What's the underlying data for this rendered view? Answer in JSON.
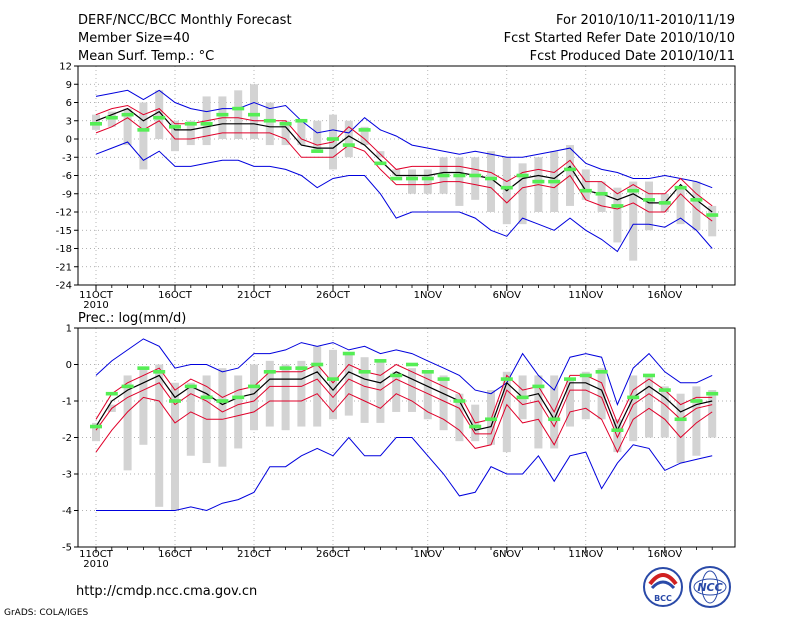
{
  "header": {
    "title": "DERF/NCC/BCC Monthly Forecast",
    "member_size": "Member Size=40",
    "variable": "Mean Surf. Temp.: °C",
    "for_range": "For 2010/10/11-2010/11/19",
    "started": "Fcst Started Refer Date 2010/10/10",
    "produced": "Fcst Produced Date 2010/10/11"
  },
  "footer": {
    "url": "http://cmdp.ncc.cma.gov.cn",
    "grads": "GrADS: COLA/IGES",
    "logo_bcc": "BCC",
    "logo_ncc": "NCC"
  },
  "colors": {
    "envelope": "#0000dd",
    "percentile": "#e0002a",
    "mean": "#000000",
    "box": "#d3d3d3",
    "marker": "#55ee55",
    "grid": "#999999"
  },
  "x_axis": {
    "day_count": 40,
    "ticks": [
      {
        "day": 0,
        "label": "11OCT"
      },
      {
        "day": 5,
        "label": "16OCT"
      },
      {
        "day": 10,
        "label": "21OCT"
      },
      {
        "day": 15,
        "label": "26OCT"
      },
      {
        "day": 21,
        "label": "1NOV"
      },
      {
        "day": 26,
        "label": "6NOV"
      },
      {
        "day": 31,
        "label": "11NOV"
      },
      {
        "day": 36,
        "label": "16NOV"
      }
    ],
    "year_label": "2010"
  },
  "chart_data": [
    {
      "type": "line",
      "id": "temp",
      "title": "Mean Surf. Temp.: °C",
      "xlabel": "",
      "ylabel": "°C",
      "ylim": [
        -24,
        12
      ],
      "yticks": [
        12,
        9,
        6,
        3,
        0,
        -3,
        -6,
        -9,
        -12,
        -15,
        -18,
        -21,
        -24
      ],
      "grid": true,
      "series": [
        {
          "name": "max",
          "values": [
            7,
            7.5,
            8,
            6.5,
            8,
            6,
            5,
            4.5,
            5,
            5,
            6,
            5,
            5.5,
            3,
            1,
            1.5,
            1,
            3.5,
            1.5,
            0.5,
            -1,
            -1.5,
            -2,
            -2.5,
            -2,
            -2.5,
            -3,
            -3,
            -2.5,
            -2,
            -1.5,
            -4,
            -5,
            -5.5,
            -6.5,
            -6.5,
            -6,
            -6.5,
            -7,
            -8
          ]
        },
        {
          "name": "p75",
          "values": [
            4,
            5,
            5.5,
            4,
            5,
            2.5,
            2.5,
            3,
            3.5,
            3.5,
            3,
            3,
            3,
            0,
            -1,
            -0.5,
            2,
            0,
            -2.5,
            -5,
            -4.5,
            -4.5,
            -4.5,
            -4.5,
            -5,
            -5.5,
            -7,
            -5.5,
            -5,
            -5.5,
            -3.5,
            -7,
            -7,
            -9,
            -7.5,
            -9,
            -9,
            -6.5,
            -9,
            -11
          ]
        },
        {
          "name": "mean",
          "values": [
            3,
            4,
            5,
            3,
            4.5,
            1.5,
            1.5,
            2,
            2.5,
            2.5,
            2.5,
            2,
            2,
            -1,
            -1.5,
            -1.5,
            0.5,
            -1,
            -3.5,
            -6,
            -6,
            -6,
            -5.5,
            -5.5,
            -6,
            -6.5,
            -8.5,
            -6.5,
            -6,
            -6.5,
            -4.5,
            -8.5,
            -9,
            -10,
            -9,
            -10.5,
            -10.5,
            -7.5,
            -10,
            -12
          ]
        },
        {
          "name": "p25",
          "values": [
            1,
            2,
            3.5,
            1.5,
            3,
            0,
            0,
            0.5,
            1,
            1,
            1,
            1,
            0,
            -3,
            -3,
            -3,
            -1,
            -2,
            -5,
            -7.5,
            -7.5,
            -7.5,
            -7,
            -7,
            -7.5,
            -8,
            -10.5,
            -8,
            -7.5,
            -8,
            -6,
            -10,
            -11,
            -11.5,
            -10.5,
            -12,
            -12,
            -9,
            -11.5,
            -13.5
          ]
        },
        {
          "name": "min",
          "values": [
            -2.5,
            -1.5,
            -0.5,
            -3.5,
            -2,
            -4.5,
            -4.5,
            -4,
            -3.5,
            -3.5,
            -4.5,
            -4.5,
            -5,
            -6,
            -8,
            -6.5,
            -6,
            -6,
            -9,
            -13,
            -12,
            -12,
            -12,
            -12,
            -13,
            -15,
            -16,
            -13,
            -14,
            -15,
            -13,
            -15,
            -16.5,
            -18.5,
            -14,
            -14,
            -14.5,
            -13,
            -15,
            -18
          ]
        }
      ],
      "boxes_low": [
        1.5,
        2,
        -1,
        -5,
        0,
        -2,
        -1,
        -1,
        0,
        0,
        0,
        -1,
        -1,
        -1,
        -2,
        -5,
        -3,
        -1,
        -3,
        -6,
        -9,
        -9,
        -9,
        -11,
        -10,
        -12,
        -14,
        -14,
        -12,
        -12,
        -11,
        -10,
        -12,
        -17,
        -20,
        -15,
        -12,
        -14,
        -15,
        -16
      ],
      "boxes_high": [
        4,
        4.5,
        5,
        6,
        8,
        3,
        3,
        7,
        7,
        8,
        9,
        6,
        3,
        3,
        3,
        4,
        3,
        2,
        -2,
        -5,
        -5,
        -5,
        -3,
        -3,
        -3,
        -2,
        -3,
        -4,
        -3,
        -2,
        -1,
        -5,
        -7,
        -8,
        -7,
        -7,
        -9,
        -8,
        -7,
        -11
      ],
      "markers": [
        2.5,
        3.5,
        4,
        1.5,
        3.5,
        2,
        2.5,
        2.5,
        4,
        5,
        4,
        3,
        2.5,
        3,
        -2,
        0,
        -1,
        1.5,
        -4,
        -6.5,
        -6.5,
        -6.5,
        -6,
        -6,
        -6,
        -6.5,
        -8,
        -6,
        -7,
        -7,
        -5,
        -8.5,
        -9,
        -11,
        -8.5,
        -10,
        -10.5,
        -8,
        -10,
        -12.5
      ]
    },
    {
      "type": "line",
      "id": "prec",
      "title": "Prec.: log(mm/d)",
      "xlabel": "",
      "ylabel": "log(mm/d)",
      "ylim": [
        -5,
        1
      ],
      "yticks": [
        1,
        0,
        -1,
        -2,
        -3,
        -4,
        -5
      ],
      "grid": true,
      "series": [
        {
          "name": "max",
          "values": [
            -0.3,
            0.1,
            0.4,
            0.7,
            0.5,
            -0.1,
            0,
            0,
            -0.2,
            -0.1,
            0.3,
            0.3,
            0.4,
            0.6,
            0.5,
            0.6,
            0.4,
            0.5,
            0.3,
            0.4,
            0.3,
            0.1,
            -0.1,
            -0.3,
            -0.7,
            -0.8,
            -0.5,
            0.3,
            -0.3,
            -0.7,
            0.2,
            0.3,
            0.2,
            -1.1,
            -0.1,
            0.3,
            -0.2,
            -0.5,
            -0.5,
            -0.3
          ]
        },
        {
          "name": "p75",
          "values": [
            -1.5,
            -0.8,
            -0.5,
            -0.3,
            -0.1,
            -0.7,
            -0.4,
            -0.6,
            -0.9,
            -0.7,
            -0.6,
            -0.2,
            -0.2,
            -0.2,
            0,
            -0.5,
            0,
            -0.2,
            -0.3,
            0,
            -0.2,
            -0.4,
            -0.6,
            -0.8,
            -1.6,
            -1.5,
            -0.3,
            -0.7,
            -0.6,
            -1.3,
            -0.3,
            -0.3,
            -0.5,
            -1.6,
            -0.7,
            -0.4,
            -0.7,
            -1.1,
            -0.9,
            -0.9
          ]
        },
        {
          "name": "mean",
          "values": [
            -1.7,
            -1.0,
            -0.7,
            -0.5,
            -0.3,
            -0.9,
            -0.6,
            -0.8,
            -1.1,
            -0.9,
            -0.8,
            -0.4,
            -0.4,
            -0.4,
            -0.2,
            -0.7,
            -0.2,
            -0.4,
            -0.5,
            -0.2,
            -0.4,
            -0.6,
            -0.8,
            -1.0,
            -1.8,
            -1.7,
            -0.5,
            -0.9,
            -0.8,
            -1.5,
            -0.5,
            -0.5,
            -0.7,
            -1.8,
            -0.9,
            -0.6,
            -0.9,
            -1.3,
            -1.1,
            -1.0
          ]
        },
        {
          "name": "p25",
          "values": [
            -1.8,
            -1.2,
            -0.9,
            -0.7,
            -0.5,
            -1.1,
            -0.8,
            -1.0,
            -1.3,
            -1.1,
            -1.0,
            -0.6,
            -0.6,
            -0.6,
            -0.4,
            -0.9,
            -0.4,
            -0.6,
            -0.7,
            -0.4,
            -0.6,
            -0.8,
            -1.0,
            -1.2,
            -1.9,
            -1.9,
            -0.7,
            -1.1,
            -1.0,
            -1.7,
            -0.7,
            -0.7,
            -0.9,
            -2.0,
            -1.1,
            -0.8,
            -1.1,
            -1.5,
            -1.2,
            -1.1
          ]
        },
        {
          "name": "p10",
          "values": [
            -2.4,
            -1.8,
            -1.3,
            -0.9,
            -1.0,
            -1.6,
            -1.3,
            -1.5,
            -1.5,
            -1.4,
            -1.3,
            -1.0,
            -1.0,
            -1.0,
            -0.8,
            -1.3,
            -0.8,
            -1.0,
            -1.2,
            -0.8,
            -1.0,
            -1.3,
            -1.5,
            -1.8,
            -2.3,
            -2.2,
            -1.1,
            -1.6,
            -1.5,
            -2.2,
            -1.3,
            -1.2,
            -1.5,
            -2.4,
            -1.5,
            -1.2,
            -1.5,
            -2.0,
            -1.6,
            -1.3
          ]
        },
        {
          "name": "min",
          "values": [
            -4,
            -4,
            -4,
            -4,
            -4,
            -4,
            -3.9,
            -4,
            -3.8,
            -3.7,
            -3.5,
            -2.8,
            -2.8,
            -2.5,
            -2.3,
            -2.5,
            -2.0,
            -2.5,
            -2.5,
            -2.0,
            -2.0,
            -2.5,
            -3.0,
            -3.6,
            -3.5,
            -2.8,
            -3.0,
            -3.0,
            -2.5,
            -3.2,
            -2.5,
            -2.4,
            -3.4,
            -2.7,
            -2.2,
            -2.3,
            -2.9,
            -2.7,
            -2.6,
            -2.5
          ]
        }
      ],
      "boxes_low": [
        -2.1,
        -1.3,
        -2.9,
        -2.2,
        -3.9,
        -4.0,
        -2.5,
        -2.7,
        -2.8,
        -2.3,
        -1.8,
        -1.7,
        -1.8,
        -1.7,
        -1.7,
        -1.5,
        -1.4,
        -1.6,
        -1.6,
        -1.3,
        -1.3,
        -1.5,
        -1.8,
        -2.1,
        -2.1,
        -2.2,
        -2.4,
        -1.5,
        -2.3,
        -2.3,
        -1.7,
        -1.5,
        -1.5,
        -2.4,
        -2.1,
        -2.0,
        -2.0,
        -2.7,
        -2.5,
        -2.0
      ],
      "boxes_high": [
        -1.6,
        -1.1,
        -0.3,
        -0.1,
        0,
        -0.5,
        -0.5,
        -0.3,
        -0.1,
        -0.3,
        0,
        0.1,
        0,
        0.1,
        0.5,
        0.4,
        0.3,
        0.2,
        0.1,
        -0.2,
        -0.1,
        -0.2,
        -0.3,
        -0.8,
        -1.1,
        -0.7,
        -0.2,
        -0.3,
        -0.3,
        -0.3,
        -0.4,
        -0.2,
        -0.1,
        -1.5,
        -0.3,
        -0.3,
        -0.6,
        -0.8,
        -0.6,
        -0.7
      ],
      "markers": [
        -1.7,
        -0.8,
        -0.6,
        -0.1,
        -0.2,
        -1.0,
        -0.6,
        -0.9,
        -1.0,
        -0.9,
        -0.6,
        -0.2,
        -0.1,
        -0.1,
        0,
        -0.4,
        0.3,
        -0.2,
        0.1,
        -0.3,
        0,
        -0.2,
        -0.4,
        -1.0,
        -1.7,
        -1.5,
        -0.4,
        -0.9,
        -0.6,
        -1.5,
        -0.4,
        -0.3,
        -0.2,
        -1.8,
        -0.9,
        -0.3,
        -0.7,
        -1.5,
        -1.0,
        -0.8
      ]
    }
  ]
}
